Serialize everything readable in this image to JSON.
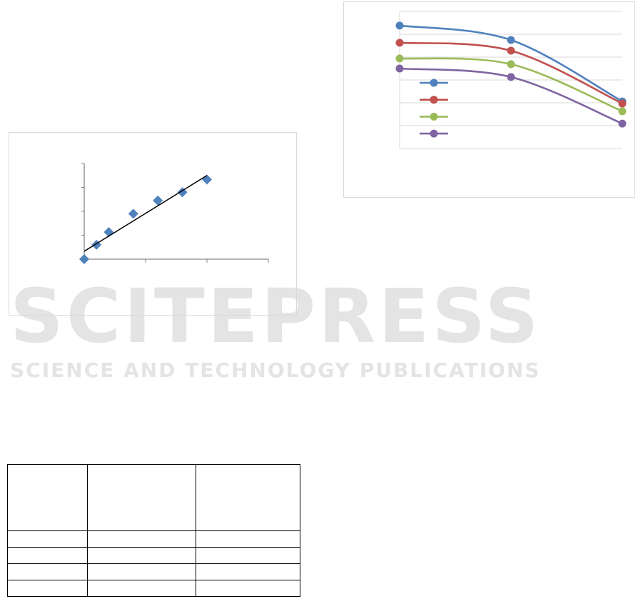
{
  "watermark": {
    "title": "SCITEPRESS",
    "subtitle": "SCIENCE AND TECHNOLOGY PUBLICATIONS"
  },
  "chart_data": [
    {
      "type": "scatter",
      "title": "",
      "xlabel": "",
      "ylabel": "",
      "xlim": [
        0,
        3
      ],
      "ylim": [
        0,
        4
      ],
      "grid": false,
      "marker": "diamond",
      "color": "#4f81bd",
      "points": [
        [
          0,
          0
        ],
        [
          0.2,
          0.6
        ],
        [
          0.4,
          1.13
        ],
        [
          0.8,
          1.9
        ],
        [
          1.2,
          2.45
        ],
        [
          1.6,
          2.8
        ],
        [
          2.0,
          3.33
        ]
      ],
      "trendline": {
        "type": "linear",
        "from": [
          0,
          0.33
        ],
        "to": [
          2,
          3.5
        ],
        "color": "#000000"
      }
    },
    {
      "type": "line",
      "title": "",
      "xlabel": "",
      "ylabel": "",
      "categories": [
        "",
        "",
        ""
      ],
      "ylim": [
        0,
        6
      ],
      "grid": true,
      "smooth": true,
      "legend": "left-middle",
      "series": [
        {
          "color": "#4f81bd",
          "values": [
            5.38,
            4.75,
            2.06
          ]
        },
        {
          "color": "#c0504d",
          "values": [
            4.63,
            4.28,
            1.97
          ]
        },
        {
          "color": "#9bbb59",
          "values": [
            3.94,
            3.69,
            1.63
          ]
        },
        {
          "color": "#8064a2",
          "values": [
            3.5,
            3.13,
            1.09
          ]
        }
      ]
    }
  ],
  "table": {
    "header": [
      "",
      "",
      ""
    ],
    "rows": [
      [
        "",
        "",
        ""
      ],
      [
        "",
        "",
        ""
      ],
      [
        "",
        "",
        ""
      ],
      [
        "",
        "",
        ""
      ]
    ]
  }
}
